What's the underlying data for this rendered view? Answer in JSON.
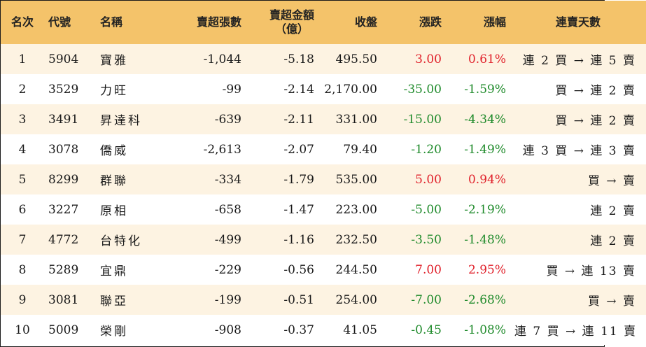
{
  "headers": {
    "rank": "名次",
    "code": "代號",
    "name": "名稱",
    "net_shares": "賣超張數",
    "net_amount_line1": "賣超金額",
    "net_amount_line2": "（億）",
    "close": "收盤",
    "change": "漲跌",
    "pct": "漲幅",
    "streak": "連賣天數"
  },
  "rows": [
    {
      "rank": "1",
      "code": "5904",
      "name": "寶雅",
      "net_shares": "-1,044",
      "net_amount": "-5.18",
      "close": "495.50",
      "change": "3.00",
      "pct": "0.61%",
      "dir": "up",
      "streak": "連 2 買 → 連 5 賣"
    },
    {
      "rank": "2",
      "code": "3529",
      "name": "力旺",
      "net_shares": "-99",
      "net_amount": "-2.14",
      "close": "2,170.00",
      "change": "-35.00",
      "pct": "-1.59%",
      "dir": "down",
      "streak": "買 → 連 2 賣"
    },
    {
      "rank": "3",
      "code": "3491",
      "name": "昇達科",
      "net_shares": "-639",
      "net_amount": "-2.11",
      "close": "331.00",
      "change": "-15.00",
      "pct": "-4.34%",
      "dir": "down",
      "streak": "買 → 連 2 賣"
    },
    {
      "rank": "4",
      "code": "3078",
      "name": "僑威",
      "net_shares": "-2,613",
      "net_amount": "-2.07",
      "close": "79.40",
      "change": "-1.20",
      "pct": "-1.49%",
      "dir": "down",
      "streak": "連 3 買 → 連 3 賣"
    },
    {
      "rank": "5",
      "code": "8299",
      "name": "群聯",
      "net_shares": "-334",
      "net_amount": "-1.79",
      "close": "535.00",
      "change": "5.00",
      "pct": "0.94%",
      "dir": "up",
      "streak": "買 → 賣"
    },
    {
      "rank": "6",
      "code": "3227",
      "name": "原相",
      "net_shares": "-658",
      "net_amount": "-1.47",
      "close": "223.00",
      "change": "-5.00",
      "pct": "-2.19%",
      "dir": "down",
      "streak": "連 2 賣"
    },
    {
      "rank": "7",
      "code": "4772",
      "name": "台特化",
      "net_shares": "-499",
      "net_amount": "-1.16",
      "close": "232.50",
      "change": "-3.50",
      "pct": "-1.48%",
      "dir": "down",
      "streak": "連 2 賣"
    },
    {
      "rank": "8",
      "code": "5289",
      "name": "宜鼎",
      "net_shares": "-229",
      "net_amount": "-0.56",
      "close": "244.50",
      "change": "7.00",
      "pct": "2.95%",
      "dir": "up",
      "streak": "買 → 連 13 賣"
    },
    {
      "rank": "9",
      "code": "3081",
      "name": "聯亞",
      "net_shares": "-199",
      "net_amount": "-0.51",
      "close": "254.00",
      "change": "-7.00",
      "pct": "-2.68%",
      "dir": "down",
      "streak": "買 → 賣"
    },
    {
      "rank": "10",
      "code": "5009",
      "name": "榮剛",
      "net_shares": "-908",
      "net_amount": "-0.37",
      "close": "41.05",
      "change": "-0.45",
      "pct": "-1.08%",
      "dir": "down",
      "streak": "連 7 買 → 連 11 賣"
    }
  ],
  "colors": {
    "header_bg": "#f4c36a",
    "stripe_bg": "#fdf3e2",
    "up": "#e0202a",
    "down": "#1e8a2a"
  }
}
